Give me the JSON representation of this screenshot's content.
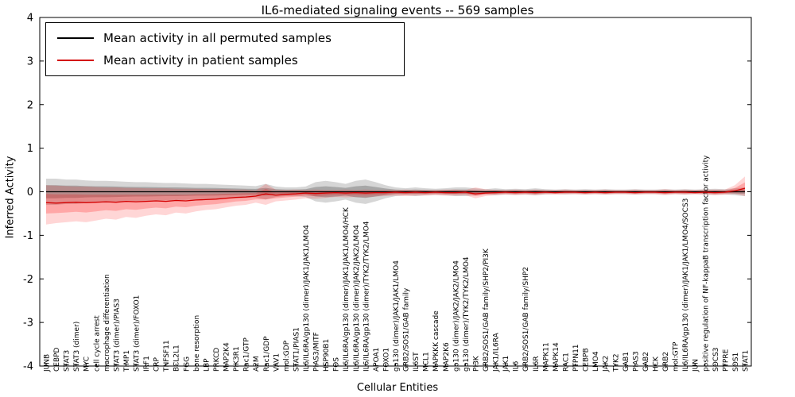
{
  "title": "IL6-mediated signaling events -- 569 samples",
  "xlabel": "Cellular Entities",
  "ylabel": "Inferred Activity",
  "legend": [
    {
      "label": "Mean activity in all permuted samples",
      "color": "#000000"
    },
    {
      "label": "Mean activity in patient samples",
      "color": "#d40000"
    }
  ],
  "chart_data": {
    "type": "line",
    "title": "IL6-mediated signaling events -- 569 samples",
    "xlabel": "Cellular Entities",
    "ylabel": "Inferred Activity",
    "ylim": [
      -4,
      4
    ],
    "yticks": [
      -4,
      -3,
      -2,
      -1,
      0,
      1,
      2,
      3,
      4
    ],
    "grid": false,
    "legend_position": "upper left",
    "categories": [
      "JUNB",
      "CEBPD",
      "STAT3",
      "STAT3 (dimer)",
      "MYC",
      "cell cycle arrest",
      "macrophage differentiation",
      "STAT3 (dimer)/PIAS3",
      "TIMP1",
      "STAT3 (dimer)/FOXO1",
      "IRF1",
      "CRP",
      "TNFSF11",
      "BCL2L1",
      "FGG",
      "bone resorption",
      "LBP",
      "PRKCD",
      "MAP2K4",
      "PIK3R1",
      "Rac1/GTP",
      "A2M",
      "Rac1/GDP",
      "VAV1",
      "mol:GDP",
      "STAT1/PIAS1",
      "IL6/IL6RA/gp130 (dimer)/JAK1/JAK1/LMO4",
      "PIAS3/MITF",
      "HSP90B1",
      "FOS",
      "IL6/IL6RA/gp130 (dimer)/JAK1/JAK1/LMO4/HCK",
      "IL6/IL6RA/gp130 (dimer)/JAK2/JAK2/LMO4",
      "IL6/IL6RA/gp130 (dimer)/TYK2/TYK2/LMO4",
      "APOA1",
      "FOXO1",
      "gp130 (dimer)/JAK1/JAK1/LMO4",
      "GRB2/SOS1/GAB family",
      "IL6ST",
      "MCL1",
      "MAPKKK cascade",
      "MAP2K6",
      "gp130 (dimer)/JAK2/JAK2/LMO4",
      "gp130 (dimer)/TYK2/TYK2/LMO4",
      "PI3K",
      "GRB2/SOS1/GAB family/SHP2/PI3K",
      "JAK1/IL6RA",
      "JAK1",
      "IL6",
      "GRB2/SOS1/GAB family/SHP2",
      "IL6R",
      "MAPK11",
      "MAPK14",
      "RAC1",
      "PTPN11",
      "CEBPB",
      "LMO4",
      "JAK2",
      "TYK2",
      "GAB1",
      "PIAS3",
      "GAB2",
      "HCK",
      "GRB2",
      "mol:GTP",
      "IL6/IL6RA/gp130 (dimer)/JAK1/JAK1/LMO4/SOCS3",
      "JUN",
      "positive regulation of NF-kappaB transcription factor activity",
      "SOCS3",
      "PTPRE",
      "SOS1",
      "STAT1"
    ],
    "series": [
      {
        "name": "Mean activity in all permuted samples",
        "color": "#000000",
        "band_color": "#000000",
        "values": [
          0,
          0,
          0,
          0,
          0,
          0,
          0,
          0,
          0,
          0,
          0,
          0,
          0,
          0,
          0,
          0,
          0,
          0,
          0,
          0,
          0,
          0,
          0,
          0,
          0,
          0,
          0,
          0,
          0,
          0,
          0,
          0,
          0,
          0,
          0,
          0,
          0,
          0,
          0,
          0,
          0,
          0,
          0,
          0,
          0,
          0,
          0,
          0,
          0,
          0,
          0,
          0,
          0,
          0,
          0,
          0,
          0,
          0,
          0,
          0,
          0,
          0,
          0,
          0,
          0,
          0,
          0,
          0,
          0,
          0,
          0
        ],
        "band_hi": [
          0.3,
          0.3,
          0.28,
          0.28,
          0.26,
          0.25,
          0.25,
          0.24,
          0.23,
          0.22,
          0.22,
          0.21,
          0.2,
          0.2,
          0.19,
          0.18,
          0.18,
          0.17,
          0.16,
          0.15,
          0.14,
          0.13,
          0.18,
          0.12,
          0.1,
          0.1,
          0.12,
          0.22,
          0.25,
          0.22,
          0.18,
          0.25,
          0.28,
          0.22,
          0.15,
          0.1,
          0.08,
          0.1,
          0.08,
          0.07,
          0.08,
          0.1,
          0.1,
          0.08,
          0.06,
          0.08,
          0.06,
          0.07,
          0.06,
          0.08,
          0.06,
          0.05,
          0.06,
          0.05,
          0.06,
          0.05,
          0.06,
          0.05,
          0.05,
          0.06,
          0.05,
          0.05,
          0.06,
          0.05,
          0.06,
          0.05,
          0.06,
          0.07,
          0.06,
          0.08,
          0.1
        ],
        "band_lo": [
          -0.3,
          -0.3,
          -0.28,
          -0.28,
          -0.26,
          -0.25,
          -0.25,
          -0.24,
          -0.23,
          -0.22,
          -0.22,
          -0.21,
          -0.2,
          -0.2,
          -0.19,
          -0.18,
          -0.18,
          -0.17,
          -0.16,
          -0.15,
          -0.14,
          -0.13,
          -0.18,
          -0.12,
          -0.1,
          -0.1,
          -0.12,
          -0.22,
          -0.25,
          -0.22,
          -0.18,
          -0.25,
          -0.28,
          -0.22,
          -0.15,
          -0.1,
          -0.08,
          -0.1,
          -0.08,
          -0.07,
          -0.08,
          -0.1,
          -0.1,
          -0.08,
          -0.06,
          -0.08,
          -0.06,
          -0.07,
          -0.06,
          -0.08,
          -0.06,
          -0.05,
          -0.06,
          -0.05,
          -0.06,
          -0.05,
          -0.06,
          -0.05,
          -0.05,
          -0.06,
          -0.05,
          -0.05,
          -0.06,
          -0.05,
          -0.06,
          -0.05,
          -0.06,
          -0.07,
          -0.06,
          -0.08,
          -0.1
        ]
      },
      {
        "name": "Mean activity in patient samples",
        "color": "#d40000",
        "band_color": "#ff0000",
        "values": [
          -0.25,
          -0.26,
          -0.25,
          -0.24,
          -0.25,
          -0.24,
          -0.23,
          -0.24,
          -0.22,
          -0.23,
          -0.22,
          -0.21,
          -0.22,
          -0.2,
          -0.21,
          -0.19,
          -0.18,
          -0.17,
          -0.15,
          -0.13,
          -0.12,
          -0.1,
          -0.05,
          -0.08,
          -0.06,
          -0.05,
          -0.03,
          -0.04,
          -0.03,
          -0.02,
          -0.03,
          -0.02,
          -0.03,
          -0.02,
          -0.02,
          -0.01,
          -0.02,
          -0.01,
          -0.02,
          -0.01,
          -0.02,
          -0.02,
          -0.01,
          -0.05,
          -0.03,
          -0.02,
          -0.01,
          -0.02,
          -0.01,
          -0.02,
          -0.01,
          -0.02,
          -0.01,
          -0.01,
          -0.02,
          -0.01,
          -0.02,
          -0.01,
          -0.01,
          -0.02,
          -0.01,
          -0.01,
          -0.02,
          -0.01,
          -0.01,
          -0.02,
          -0.01,
          -0.02,
          -0.01,
          0.02,
          0.08
        ],
        "band_hi": [
          0.15,
          0.14,
          0.13,
          0.12,
          0.12,
          0.11,
          0.1,
          0.1,
          0.09,
          0.09,
          0.08,
          0.08,
          0.08,
          0.07,
          0.07,
          0.07,
          0.06,
          0.06,
          0.06,
          0.05,
          0.05,
          0.03,
          0.18,
          0.05,
          0.04,
          0.05,
          0.04,
          0.05,
          0.04,
          0.04,
          0.05,
          0.04,
          0.05,
          0.04,
          0.04,
          0.04,
          0.05,
          0.04,
          0.04,
          0.04,
          0.05,
          0.05,
          0.04,
          0.1,
          0.06,
          0.04,
          0.04,
          0.05,
          0.04,
          0.05,
          0.04,
          0.04,
          0.05,
          0.04,
          0.04,
          0.04,
          0.05,
          0.04,
          0.04,
          0.05,
          0.04,
          0.04,
          0.06,
          0.04,
          0.05,
          0.04,
          0.05,
          0.05,
          0.05,
          0.15,
          0.35
        ],
        "band_lo": [
          -0.75,
          -0.72,
          -0.7,
          -0.68,
          -0.7,
          -0.66,
          -0.62,
          -0.64,
          -0.58,
          -0.6,
          -0.55,
          -0.52,
          -0.54,
          -0.48,
          -0.5,
          -0.45,
          -0.42,
          -0.4,
          -0.36,
          -0.32,
          -0.3,
          -0.25,
          -0.3,
          -0.22,
          -0.2,
          -0.18,
          -0.15,
          -0.16,
          -0.14,
          -0.12,
          -0.13,
          -0.12,
          -0.13,
          -0.11,
          -0.1,
          -0.09,
          -0.1,
          -0.09,
          -0.09,
          -0.08,
          -0.09,
          -0.09,
          -0.08,
          -0.15,
          -0.1,
          -0.08,
          -0.07,
          -0.08,
          -0.07,
          -0.08,
          -0.06,
          -0.07,
          -0.06,
          -0.06,
          -0.07,
          -0.06,
          -0.07,
          -0.06,
          -0.06,
          -0.07,
          -0.06,
          -0.06,
          -0.08,
          -0.06,
          -0.07,
          -0.06,
          -0.07,
          -0.08,
          -0.07,
          -0.05,
          -0.1
        ]
      }
    ]
  }
}
